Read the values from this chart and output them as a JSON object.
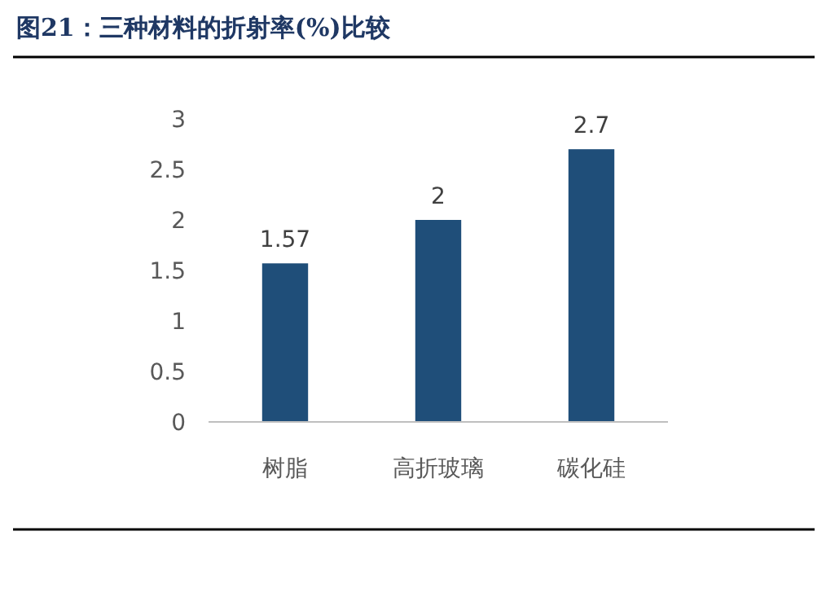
{
  "chart_data": {
    "type": "bar",
    "title": "图21：三种材料的折射率(%)比较",
    "categories": [
      "树脂",
      "高折玻璃",
      "碳化硅"
    ],
    "values": [
      1.57,
      2,
      2.7
    ],
    "color": "#1f4e79",
    "ylim": [
      0,
      3
    ],
    "yticks": [
      0,
      0.5,
      1,
      1.5,
      2,
      2.5,
      3
    ],
    "data_labels": true,
    "grid": false
  }
}
